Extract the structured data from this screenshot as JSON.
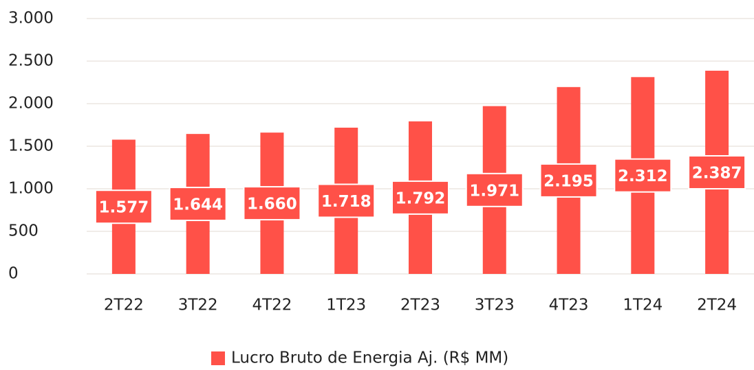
{
  "chart_data": {
    "type": "bar",
    "categories": [
      "2T22",
      "3T22",
      "4T22",
      "1T23",
      "2T23",
      "3T23",
      "4T23",
      "1T24",
      "2T24"
    ],
    "series": [
      {
        "name": "Lucro Bruto de Energia Aj. (R$ MM)",
        "color": "#ff5148",
        "values": [
          1577,
          1644,
          1660,
          1718,
          1792,
          1971,
          2195,
          2312,
          2387
        ],
        "value_labels": [
          "1.577",
          "1.644",
          "1.660",
          "1.718",
          "1.792",
          "1.971",
          "2.195",
          "2.312",
          "2.387"
        ]
      }
    ],
    "ylim": [
      0,
      3000
    ],
    "yticks": [
      0,
      500,
      {
        "value": 1000,
        "label": "1.000"
      },
      {
        "value": 1500,
        "label": "1.500"
      },
      {
        "value": 2000,
        "label": "2.000"
      },
      {
        "value": 2500,
        "label": "2.500"
      },
      {
        "value": 3000,
        "label": "3.000"
      }
    ],
    "grid": true,
    "legend": "bottom"
  }
}
